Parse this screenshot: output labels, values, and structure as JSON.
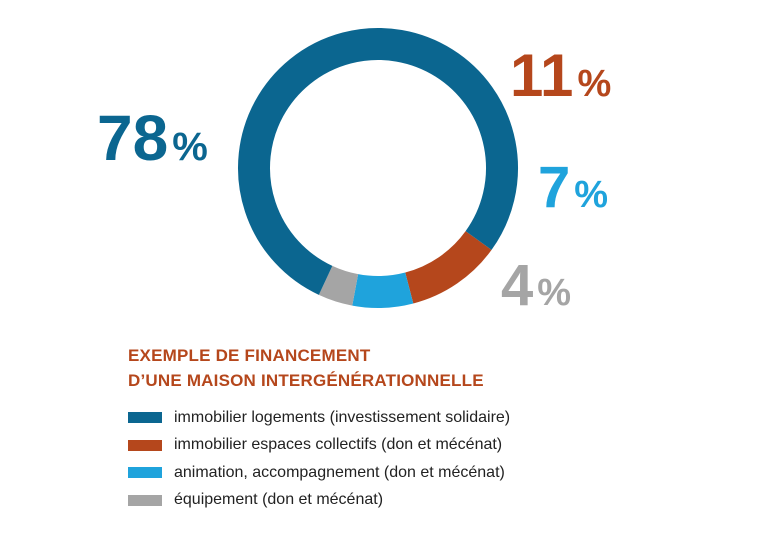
{
  "chart_data": {
    "type": "pie",
    "variant": "donut",
    "title_lines": [
      "EXEMPLE DE FINANCEMENT",
      "D’UNE MAISON INTERGÉNÉRATIONNELLE"
    ],
    "series": [
      {
        "name": "immobilier logements (investissement solidaire)",
        "value": 78,
        "label_num": "78",
        "label_unit": "%",
        "color": "#0b6690"
      },
      {
        "name": "immobilier espaces collectifs (don et mécénat)",
        "value": 11,
        "label_num": "11",
        "label_unit": "%",
        "color": "#b5471c"
      },
      {
        "name": "animation, accompagnement (don et mécénat)",
        "value": 7,
        "label_num": "7",
        "label_unit": "%",
        "color": "#1fa3dc"
      },
      {
        "name": "équipement (don et mécénat)",
        "value": 4,
        "label_num": "4",
        "label_unit": "%",
        "color": "#a5a5a5"
      }
    ],
    "legend_position": "bottom-left"
  },
  "title_color": "#b5471c",
  "text_color": "#222222"
}
